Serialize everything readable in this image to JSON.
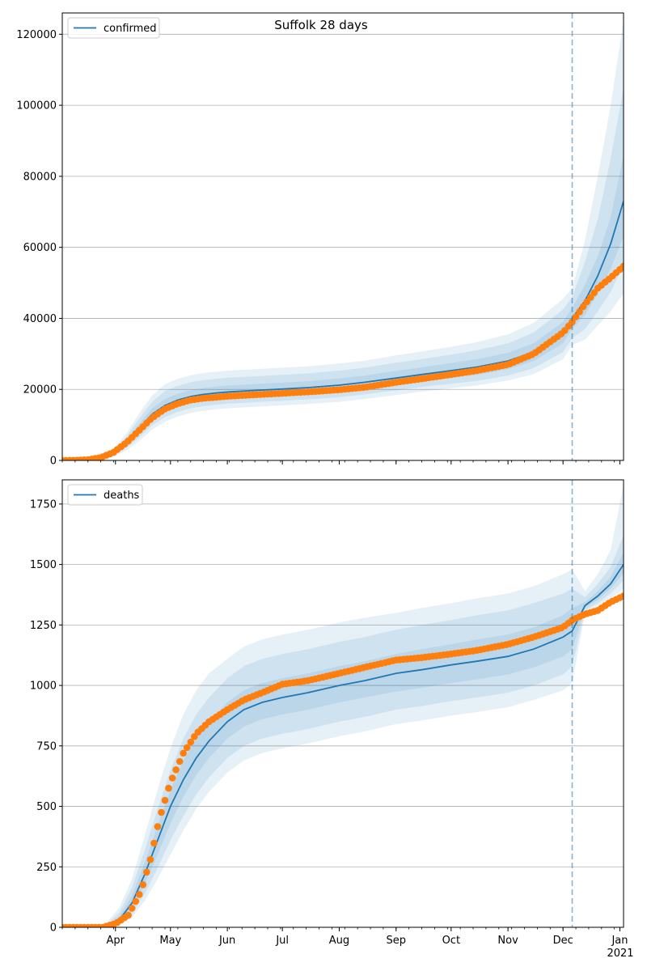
{
  "figure_title": "Suffolk 28 days",
  "colors": {
    "model_line": "#1f77b4",
    "band": "#1f77b4",
    "observed": "#ff7f0e",
    "grid": "#b0b0b0",
    "vline": "#1f77b4"
  },
  "x_axis": {
    "month_labels": [
      "Apr",
      "May",
      "Jun",
      "Jul",
      "Aug",
      "Sep",
      "Oct",
      "Nov",
      "Dec",
      "Jan"
    ],
    "year_label": "2021"
  },
  "chart_data": [
    {
      "type": "line",
      "legend": "confirmed",
      "legend_position": "top-left",
      "grid": "horizontal",
      "x_range": [
        "2020-03-03",
        "2021-01-03"
      ],
      "forecast_start": "2020-12-06",
      "ylim": [
        0,
        126000
      ],
      "yticks": [
        0,
        20000,
        40000,
        60000,
        80000,
        100000,
        120000
      ],
      "model": {
        "x": [
          "2020-03-03",
          "2020-03-10",
          "2020-03-17",
          "2020-03-24",
          "2020-03-31",
          "2020-04-07",
          "2020-04-14",
          "2020-04-21",
          "2020-04-28",
          "2020-05-05",
          "2020-05-12",
          "2020-05-19",
          "2020-05-26",
          "2020-06-02",
          "2020-06-16",
          "2020-07-01",
          "2020-07-15",
          "2020-08-01",
          "2020-08-15",
          "2020-09-01",
          "2020-09-15",
          "2020-10-01",
          "2020-10-15",
          "2020-11-01",
          "2020-11-15",
          "2020-12-01",
          "2020-12-06",
          "2020-12-13",
          "2020-12-20",
          "2020-12-27",
          "2021-01-03"
        ],
        "y": [
          0,
          50,
          200,
          700,
          2000,
          5000,
          9000,
          13000,
          15500,
          17000,
          18000,
          18600,
          19000,
          19300,
          19700,
          20100,
          20500,
          21200,
          22000,
          23200,
          24200,
          25300,
          26300,
          28000,
          30500,
          36000,
          40000,
          45000,
          52000,
          61000,
          73000
        ],
        "bands": [
          {
            "lo": [
              0,
              30,
              150,
              550,
              1600,
              4200,
              7700,
              11300,
              13700,
              15200,
              16200,
              16800,
              17200,
              17500,
              17900,
              18300,
              18700,
              19300,
              20100,
              21200,
              22200,
              23200,
              24100,
              25700,
              28000,
              33000,
              37000,
              41000,
              47000,
              54000,
              63000
            ],
            "hi": [
              0,
              70,
              250,
              850,
              2400,
              5800,
              10300,
              14700,
              17300,
              18800,
              19800,
              20400,
              20800,
              21100,
              21500,
              21900,
              22300,
              23100,
              23900,
              25200,
              26200,
              27400,
              28500,
              30300,
              33000,
              39000,
              43000,
              49500,
              57500,
              68500,
              86000
            ]
          },
          {
            "lo": [
              0,
              20,
              100,
              400,
              1250,
              3500,
              6500,
              9900,
              12200,
              13700,
              14700,
              15300,
              15700,
              16000,
              16400,
              16800,
              17200,
              17800,
              18600,
              19700,
              20700,
              21600,
              22400,
              23900,
              26000,
              30500,
              34500,
              37000,
              42000,
              47500,
              55000
            ],
            "hi": [
              0,
              90,
              320,
              1050,
              2900,
              6700,
              11800,
              16500,
              19500,
              21000,
              22000,
              22600,
              23000,
              23300,
              23700,
              24100,
              24500,
              25300,
              26100,
              27500,
              28500,
              29800,
              31000,
              33000,
              36000,
              42500,
              46000,
              56000,
              68000,
              85000,
              105000
            ]
          },
          {
            "lo": [
              0,
              10,
              60,
              300,
              950,
              2900,
              5500,
              8700,
              10900,
              12400,
              13400,
              14000,
              14400,
              14700,
              15100,
              15500,
              15900,
              16500,
              17300,
              18400,
              19400,
              20300,
              21100,
              22500,
              24300,
              28500,
              32500,
              34000,
              38000,
              42000,
              47000
            ],
            "hi": [
              0,
              110,
              400,
              1250,
              3400,
              7600,
              13300,
              18300,
              21500,
              23000,
              24000,
              24600,
              25000,
              25300,
              25700,
              26100,
              26500,
              27300,
              28100,
              29600,
              30700,
              32000,
              33300,
              35500,
              38700,
              45500,
              48500,
              62000,
              80000,
              100000,
              124000
            ]
          }
        ]
      },
      "observed": {
        "x": [
          "2020-03-03",
          "2020-03-10",
          "2020-03-17",
          "2020-03-24",
          "2020-03-31",
          "2020-04-07",
          "2020-04-14",
          "2020-04-21",
          "2020-04-28",
          "2020-05-05",
          "2020-05-12",
          "2020-05-19",
          "2020-05-26",
          "2020-06-02",
          "2020-06-16",
          "2020-07-01",
          "2020-07-15",
          "2020-08-01",
          "2020-08-15",
          "2020-09-01",
          "2020-09-15",
          "2020-10-01",
          "2020-10-15",
          "2020-11-01",
          "2020-11-15",
          "2020-12-01",
          "2020-12-06",
          "2020-12-13",
          "2020-12-20",
          "2020-12-27",
          "2021-01-03"
        ],
        "y": [
          0,
          30,
          200,
          800,
          2300,
          5000,
          8500,
          12000,
          14500,
          16000,
          17000,
          17500,
          17800,
          18100,
          18500,
          18900,
          19300,
          19900,
          20600,
          22000,
          23000,
          24200,
          25300,
          27000,
          30000,
          36000,
          39000,
          44000,
          48500,
          51500,
          54700
        ]
      }
    },
    {
      "type": "line",
      "legend": "deaths",
      "legend_position": "top-left",
      "grid": "horizontal",
      "x_range": [
        "2020-03-03",
        "2021-01-03"
      ],
      "forecast_start": "2020-12-06",
      "ylim": [
        0,
        1850
      ],
      "yticks": [
        0,
        250,
        500,
        750,
        1000,
        1250,
        1500,
        1750
      ],
      "model": {
        "x": [
          "2020-03-03",
          "2020-03-20",
          "2020-03-27",
          "2020-04-03",
          "2020-04-10",
          "2020-04-17",
          "2020-04-24",
          "2020-05-01",
          "2020-05-08",
          "2020-05-15",
          "2020-05-22",
          "2020-06-01",
          "2020-06-10",
          "2020-06-20",
          "2020-07-01",
          "2020-07-15",
          "2020-08-01",
          "2020-08-15",
          "2020-09-01",
          "2020-09-15",
          "2020-10-01",
          "2020-10-15",
          "2020-11-01",
          "2020-11-15",
          "2020-12-01",
          "2020-12-06",
          "2020-12-13",
          "2020-12-20",
          "2020-12-27",
          "2021-01-03"
        ],
        "y": [
          0,
          0,
          5,
          30,
          100,
          220,
          360,
          500,
          610,
          700,
          770,
          850,
          900,
          930,
          950,
          970,
          1000,
          1020,
          1050,
          1065,
          1085,
          1100,
          1120,
          1150,
          1200,
          1225,
          1330,
          1370,
          1420,
          1500
        ],
        "bands": [
          {
            "lo": [
              0,
              0,
              2,
              20,
              75,
              180,
              300,
              430,
              540,
              630,
              700,
              780,
              830,
              860,
              880,
              900,
              930,
              950,
              975,
              990,
              1010,
              1025,
              1045,
              1075,
              1120,
              1150,
              1320,
              1355,
              1400,
              1465
            ],
            "hi": [
              0,
              0,
              8,
              45,
              130,
              270,
              420,
              570,
              690,
              780,
              850,
              930,
              980,
              1010,
              1030,
              1050,
              1080,
              1100,
              1130,
              1150,
              1170,
              1190,
              1210,
              1240,
              1290,
              1320,
              1345,
              1390,
              1450,
              1550
            ]
          },
          {
            "lo": [
              0,
              0,
              0,
              12,
              55,
              140,
              245,
              360,
              460,
              550,
              620,
              700,
              750,
              780,
              800,
              820,
              850,
              870,
              900,
              915,
              935,
              950,
              970,
              1000,
              1045,
              1080,
              1310,
              1340,
              1380,
              1435
            ],
            "hi": [
              0,
              0,
              12,
              60,
              165,
              320,
              490,
              650,
              780,
              880,
              950,
              1030,
              1080,
              1110,
              1130,
              1150,
              1180,
              1200,
              1230,
              1250,
              1270,
              1290,
              1310,
              1340,
              1380,
              1400,
              1365,
              1420,
              1490,
              1620
            ]
          },
          {
            "lo": [
              0,
              0,
              0,
              5,
              40,
              110,
              200,
              300,
              400,
              490,
              560,
              640,
              690,
              720,
              740,
              760,
              790,
              810,
              840,
              855,
              875,
              890,
              910,
              940,
              980,
              1010,
              1300,
              1325,
              1360,
              1400
            ],
            "hi": [
              0,
              0,
              18,
              80,
              200,
              380,
              570,
              740,
              880,
              980,
              1050,
              1110,
              1160,
              1190,
              1210,
              1230,
              1260,
              1280,
              1300,
              1320,
              1340,
              1360,
              1380,
              1410,
              1460,
              1480,
              1390,
              1460,
              1560,
              1830
            ]
          }
        ]
      },
      "observed": {
        "x": [
          "2020-03-03",
          "2020-03-25",
          "2020-04-01",
          "2020-04-08",
          "2020-04-15",
          "2020-04-20",
          "2020-04-25",
          "2020-05-01",
          "2020-05-08",
          "2020-05-15",
          "2020-05-22",
          "2020-06-01",
          "2020-06-10",
          "2020-06-20",
          "2020-07-01",
          "2020-07-15",
          "2020-08-01",
          "2020-08-15",
          "2020-09-01",
          "2020-09-15",
          "2020-10-01",
          "2020-10-15",
          "2020-11-01",
          "2020-11-15",
          "2020-12-01",
          "2020-12-06",
          "2020-12-13",
          "2020-12-20",
          "2020-12-27",
          "2021-01-03"
        ],
        "y": [
          0,
          0,
          15,
          50,
          150,
          280,
          450,
          600,
          720,
          800,
          850,
          900,
          940,
          970,
          1005,
          1020,
          1050,
          1075,
          1105,
          1115,
          1130,
          1145,
          1170,
          1200,
          1240,
          1270,
          1295,
          1310,
          1345,
          1370
        ]
      }
    }
  ]
}
